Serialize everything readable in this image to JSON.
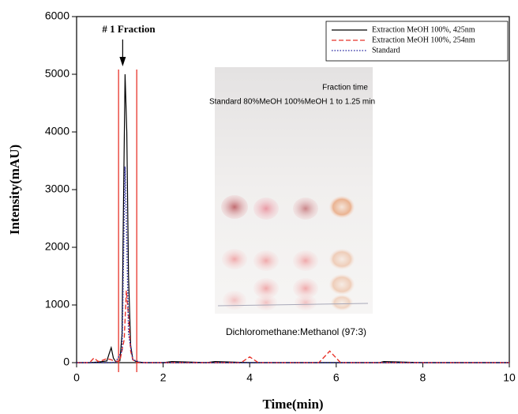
{
  "chart_data": {
    "type": "line",
    "x_label": "Time(min)",
    "y_label": "Intensity(mAU)",
    "xlim": [
      0,
      10
    ],
    "ylim": [
      0,
      6000
    ],
    "xticks": [
      0,
      2,
      4,
      6,
      8,
      10
    ],
    "yticks": [
      0,
      1000,
      2000,
      3000,
      4000,
      5000,
      6000
    ],
    "legend_position": "upper right",
    "series": [
      {
        "name": "Extraction MeOH 100%, 425nm",
        "color": "#000000",
        "style": "solid",
        "x": [
          0,
          0.3,
          0.5,
          0.7,
          0.75,
          0.8,
          0.85,
          0.9,
          1.0,
          1.05,
          1.08,
          1.12,
          1.16,
          1.2,
          1.25,
          1.3,
          1.4,
          1.6,
          2,
          2.2,
          3,
          3.2,
          4,
          5,
          5.9,
          7,
          7.1,
          8,
          10
        ],
        "values": [
          0,
          0,
          10,
          30,
          150,
          260,
          80,
          20,
          30,
          500,
          2500,
          5000,
          4000,
          1500,
          300,
          50,
          10,
          0,
          0,
          20,
          0,
          20,
          0,
          0,
          0,
          0,
          20,
          0,
          0
        ]
      },
      {
        "name": "Extraction MeOH 100%, 254nm",
        "color": "#e8332a",
        "style": "dashed",
        "x": [
          0,
          0.3,
          0.4,
          0.5,
          0.6,
          0.7,
          0.8,
          0.9,
          1.0,
          1.1,
          1.15,
          1.2,
          1.25,
          1.3,
          1.4,
          2,
          3.8,
          4.0,
          4.2,
          5.6,
          5.85,
          6.1,
          10
        ],
        "values": [
          0,
          0,
          80,
          20,
          40,
          70,
          50,
          20,
          30,
          400,
          1250,
          800,
          200,
          50,
          0,
          0,
          0,
          100,
          0,
          0,
          200,
          0,
          0
        ]
      },
      {
        "name": "Standard",
        "color": "#1c1c9c",
        "style": "dotted",
        "x": [
          0,
          0.8,
          0.9,
          1.05,
          1.1,
          1.12,
          1.15,
          1.2,
          1.3,
          1.5,
          10
        ],
        "values": [
          0,
          0,
          10,
          200,
          2500,
          3400,
          2500,
          500,
          50,
          0,
          0
        ]
      }
    ],
    "fraction_bounds": [
      0.97,
      1.39
    ],
    "fraction_label": "# 1 Fraction",
    "inset_labels": [
      "Fraction time",
      "Standard 80%MeOH 100%MeOH 1 to 1.25 min",
      "Dichloromethane:Methanol (97:3)"
    ]
  }
}
